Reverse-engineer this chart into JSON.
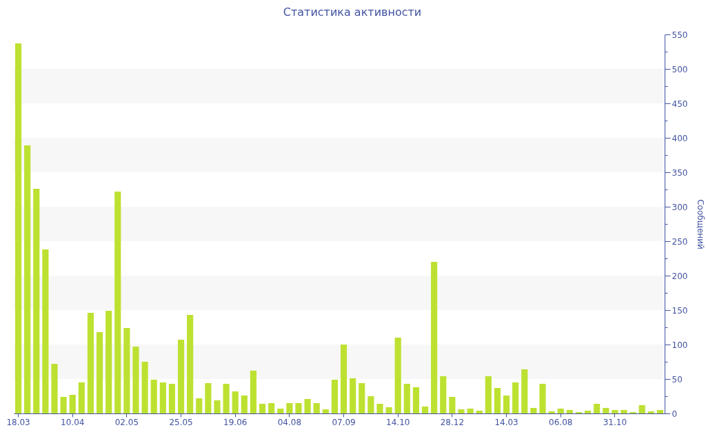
{
  "chart_data": {
    "type": "bar",
    "title": "Статистика активности",
    "ylabel": "Сообщений",
    "categories": [
      "18.03",
      null,
      null,
      null,
      null,
      null,
      "10.04",
      null,
      null,
      null,
      null,
      null,
      "02.05",
      null,
      null,
      null,
      null,
      null,
      "25.05",
      null,
      null,
      null,
      null,
      null,
      "19.06",
      null,
      null,
      null,
      null,
      null,
      "04.08",
      null,
      null,
      null,
      null,
      null,
      "07.09",
      null,
      null,
      null,
      null,
      null,
      "14.10",
      null,
      null,
      null,
      null,
      null,
      "28.12",
      null,
      null,
      null,
      null,
      null,
      "14.03",
      null,
      null,
      null,
      null,
      null,
      "06.08",
      null,
      null,
      null,
      null,
      null,
      "31.10",
      null,
      null,
      null,
      null,
      null
    ],
    "values": [
      537,
      389,
      326,
      238,
      72,
      24,
      27,
      45,
      146,
      118,
      149,
      322,
      124,
      97,
      75,
      49,
      45,
      43,
      107,
      143,
      22,
      44,
      19,
      43,
      32,
      26,
      62,
      14,
      15,
      7,
      15,
      15,
      21,
      15,
      6,
      49,
      100,
      51,
      44,
      25,
      14,
      9,
      110,
      43,
      38,
      10,
      220,
      54,
      24,
      6,
      7,
      4,
      54,
      37,
      26,
      45,
      64,
      8,
      43,
      3,
      7,
      5,
      2,
      4,
      14,
      8,
      5,
      5,
      2,
      12,
      3,
      5
    ],
    "color": "#bde131",
    "ylim": [
      0,
      550
    ],
    "yticks": [
      0,
      {
        "value": 25,
        "label": null
      },
      50,
      {
        "value": 75,
        "label": null
      },
      100,
      {
        "value": 125,
        "label": null
      },
      150,
      {
        "value": 175,
        "label": null
      },
      200,
      {
        "value": 225,
        "label": null
      },
      250,
      {
        "value": 275,
        "label": null
      },
      300,
      {
        "value": 325,
        "label": null
      },
      350,
      {
        "value": 375,
        "label": null
      },
      400,
      {
        "value": 425,
        "label": null
      },
      450,
      {
        "value": 475,
        "label": null
      },
      500,
      {
        "value": 525,
        "label": null
      },
      550
    ],
    "bands": [
      {
        "axis": "y",
        "from": 50,
        "to": 100,
        "color": "#f7f7f7"
      },
      {
        "axis": "y",
        "from": 150,
        "to": 200,
        "color": "#f7f7f7"
      },
      {
        "axis": "y",
        "from": 250,
        "to": 300,
        "color": "#f7f7f7"
      },
      {
        "axis": "y",
        "from": 350,
        "to": 400,
        "color": "#f7f7f7"
      },
      {
        "axis": "y",
        "from": 450,
        "to": 500,
        "color": "#f7f7f7"
      }
    ]
  }
}
